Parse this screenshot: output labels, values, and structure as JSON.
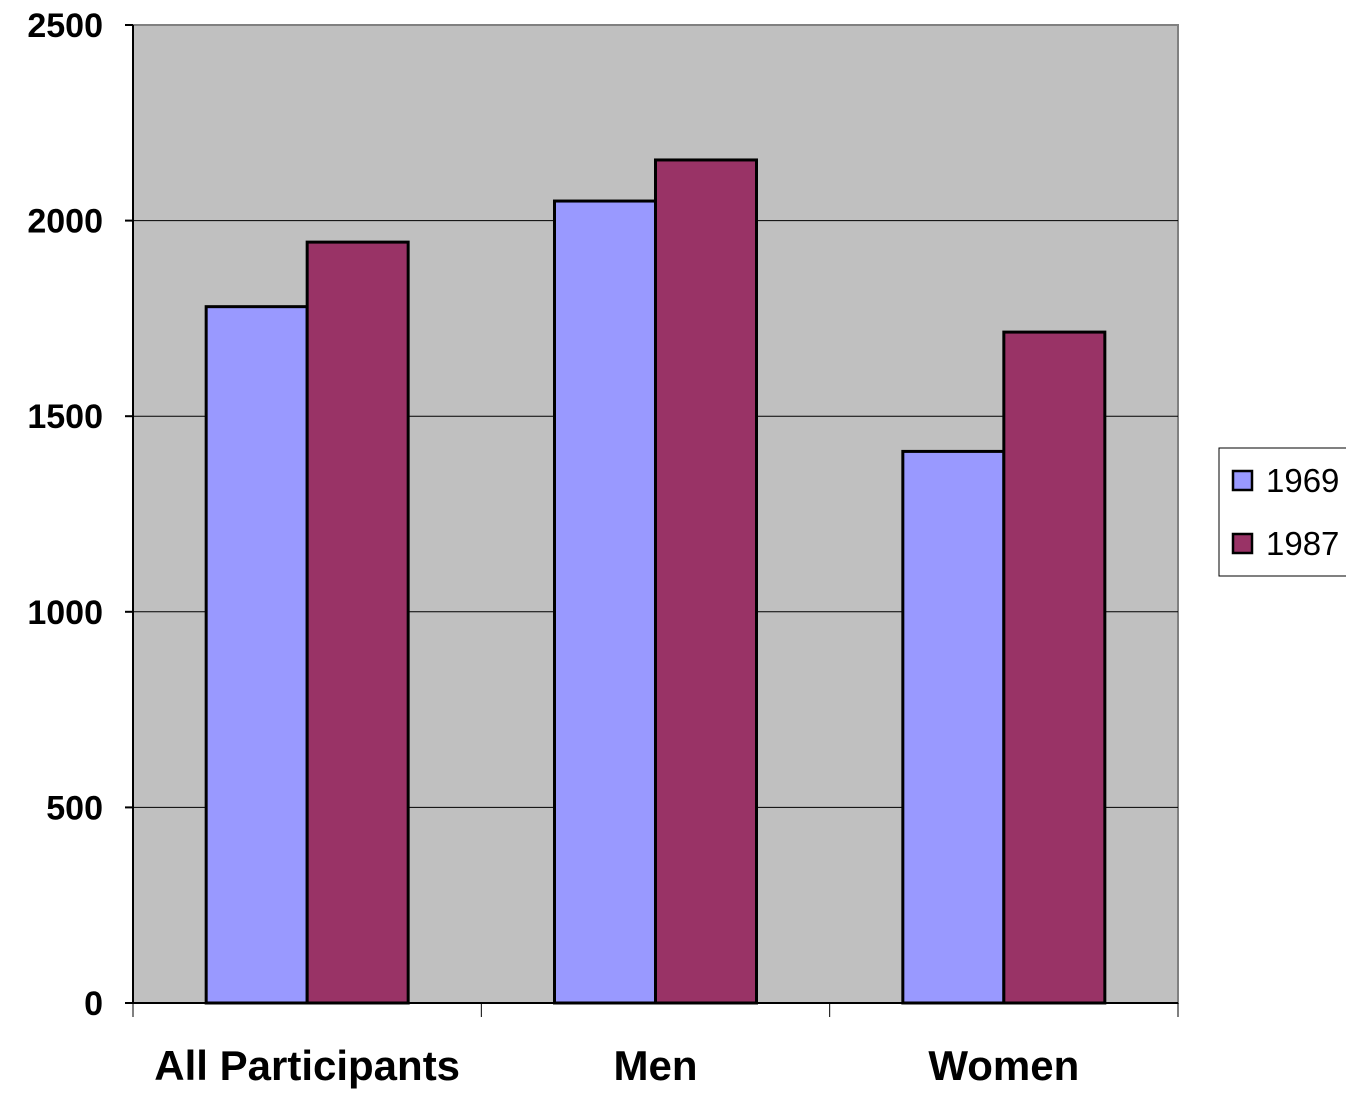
{
  "chart_data": {
    "type": "bar",
    "title": "",
    "xlabel": "",
    "ylabel": "",
    "categories": [
      "All Participants",
      "Men",
      "Women"
    ],
    "series": [
      {
        "name": "1969",
        "values": [
          1780,
          2050,
          1410
        ],
        "color": "#9999FF"
      },
      {
        "name": "1987",
        "values": [
          1945,
          2155,
          1715
        ],
        "color": "#993366"
      }
    ],
    "ylim": [
      0,
      2500
    ],
    "yticks": [
      0,
      500,
      1000,
      1500,
      2000,
      2500
    ],
    "ytick_labels": [
      "0",
      "500",
      "1000",
      "1500",
      "2000",
      "2500"
    ],
    "grid": true,
    "legend_position": "right",
    "colors": {
      "plot_background": "#C0C0C0",
      "gridline": "#000000",
      "bar_outline": "#000000"
    }
  }
}
